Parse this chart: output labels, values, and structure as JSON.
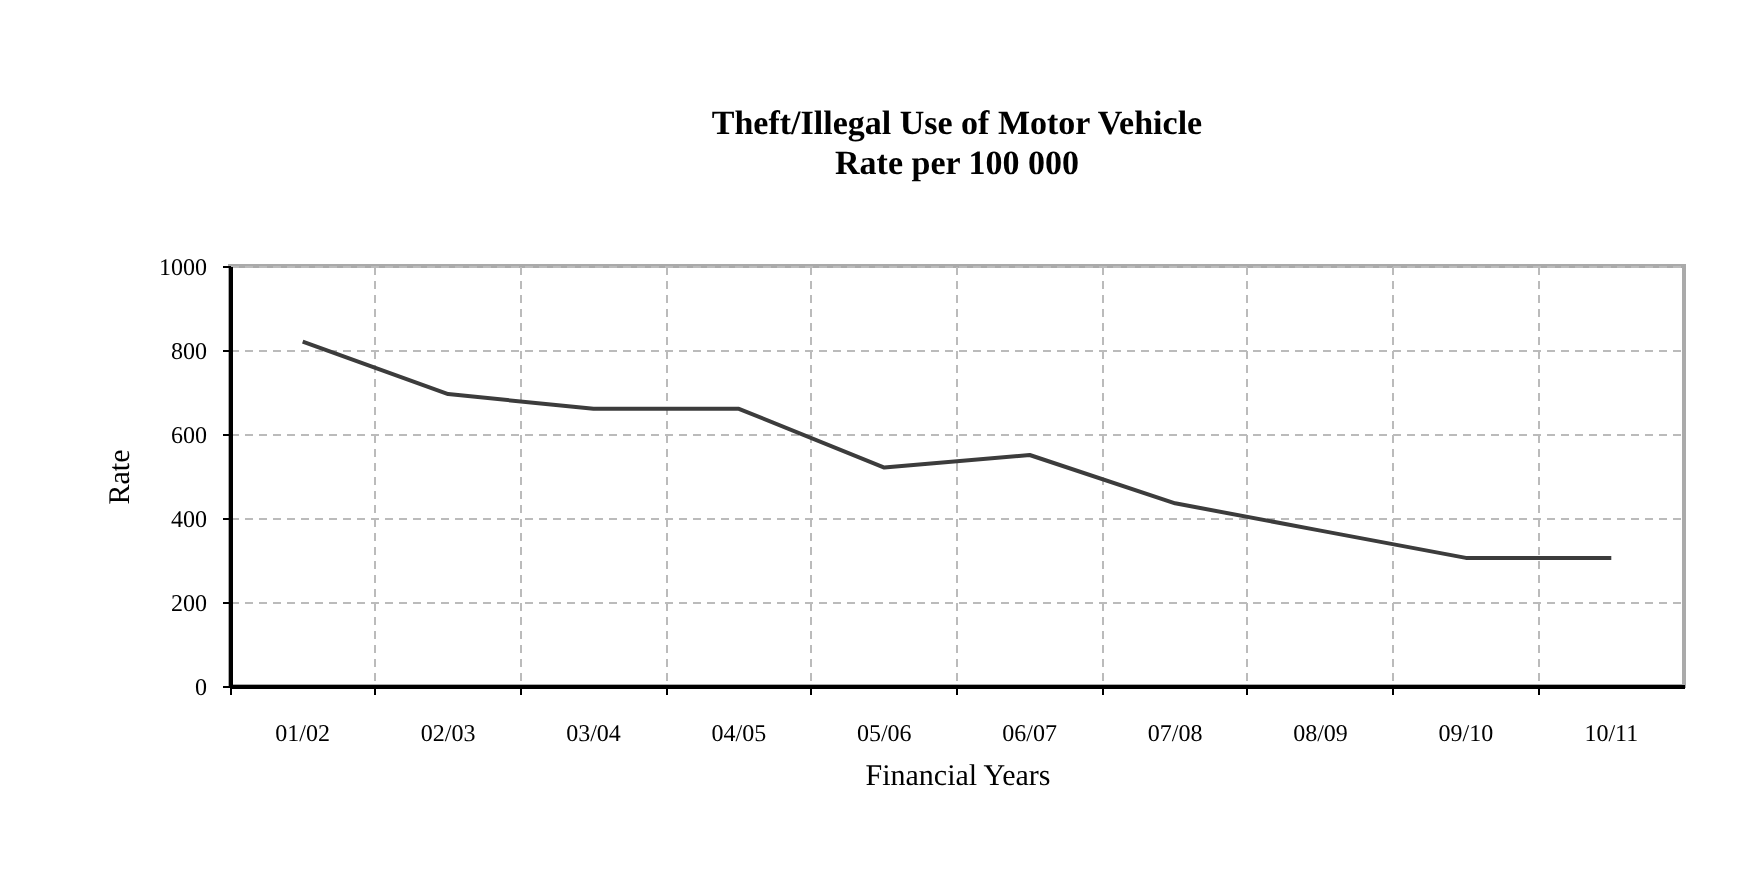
{
  "chart_data": {
    "type": "line",
    "title": "Theft/Illegal Use of Motor Vehicle",
    "subtitle": "Rate per 100 000",
    "xlabel": "Financial Years",
    "ylabel": "Rate",
    "categories": [
      "01/02",
      "02/03",
      "03/04",
      "04/05",
      "05/06",
      "06/07",
      "07/08",
      "08/09",
      "09/10",
      "10/11"
    ],
    "series": [
      {
        "color": "#3c3c3c",
        "values": [
          820,
          695,
          660,
          660,
          520,
          550,
          435,
          370,
          305,
          305
        ]
      }
    ],
    "ylim": [
      0,
      1000
    ],
    "yticks": [
      0,
      200,
      400,
      600,
      800,
      1000
    ],
    "grid": true,
    "marker": "none",
    "line_style": "solid"
  }
}
